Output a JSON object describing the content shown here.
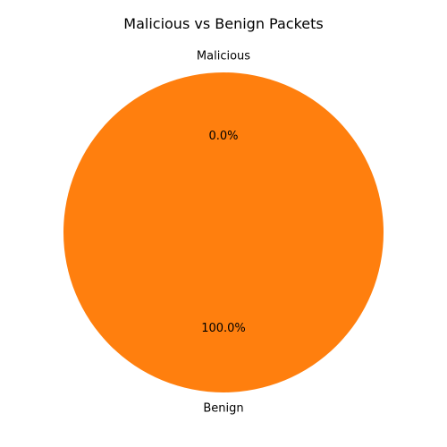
{
  "chart_data": {
    "type": "pie",
    "title": "Malicious vs Benign Packets",
    "slices": [
      {
        "label": "Malicious",
        "value": 0.0,
        "percent_label": "0.0%",
        "color": "#1f77b4"
      },
      {
        "label": "Benign",
        "value": 100.0,
        "percent_label": "100.0%",
        "color": "#ff7f0e"
      }
    ],
    "start_angle_deg": 90,
    "direction": "counterclockwise",
    "legend": "none"
  }
}
